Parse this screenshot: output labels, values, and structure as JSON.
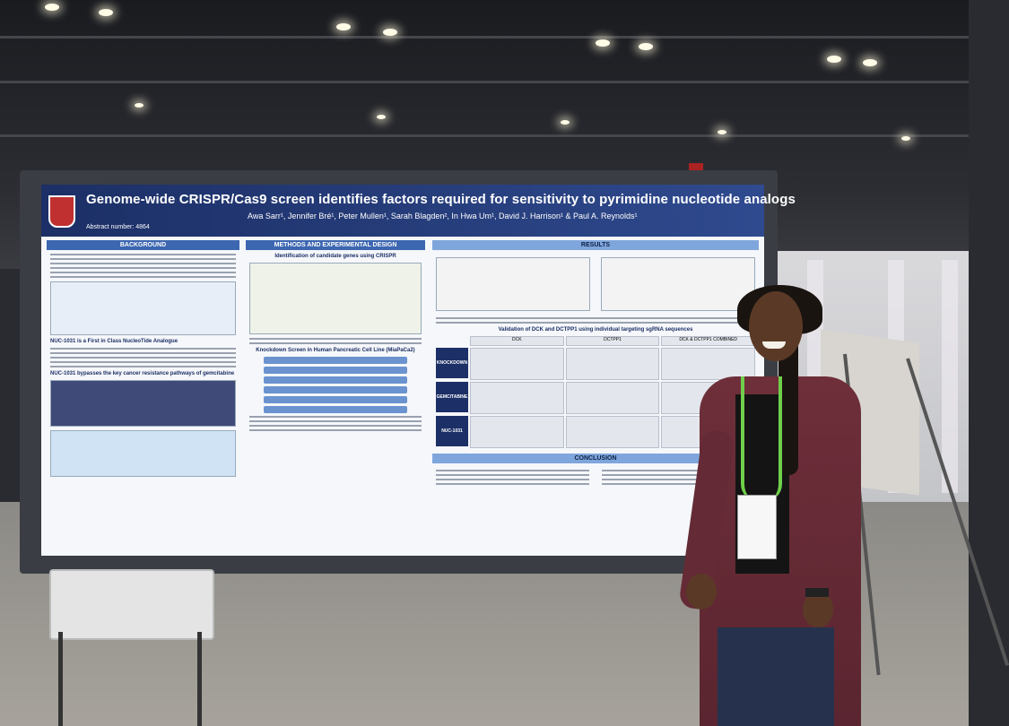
{
  "poster": {
    "title": "Genome-wide CRISPR/Cas9 screen identifies factors required for sensitivity to pyrimidine nucleotide analogs",
    "abstract_number": "Abstract number: 4864",
    "authors": "Awa Sarr¹, Jennifer Bré¹, Peter Mullen¹, Sarah Blagden², In Hwa Um¹, David J. Harrison¹ & Paul A. Reynolds¹",
    "sections": {
      "background": "BACKGROUND",
      "methods": "METHODS AND EXPERIMENTAL DESIGN",
      "methods_sub": "Identification of candidate genes using CRISPR",
      "knockdown_title": "Knockdown Screen in Human Pancreatic Cell Line (MiaPaCa2)",
      "results": "RESULTS",
      "validation": "Validation of DCK and DCTPP1 using individual targeting sgRNA sequences",
      "conclusion": "CONCLUSION",
      "nuc_heading": "NUC-1031 is a First in Class NucleoTide Analogue",
      "bypass_heading": "NUC-1031 bypasses the key cancer resistance pathways of gemcitabine"
    },
    "validation_columns": [
      "DCK",
      "DCTPP1",
      "DCK & DCTPP1 COMBINED"
    ],
    "validation_rows": [
      "KNOCKDOWN",
      "GEMCITABINE",
      "NUC-1031"
    ]
  }
}
